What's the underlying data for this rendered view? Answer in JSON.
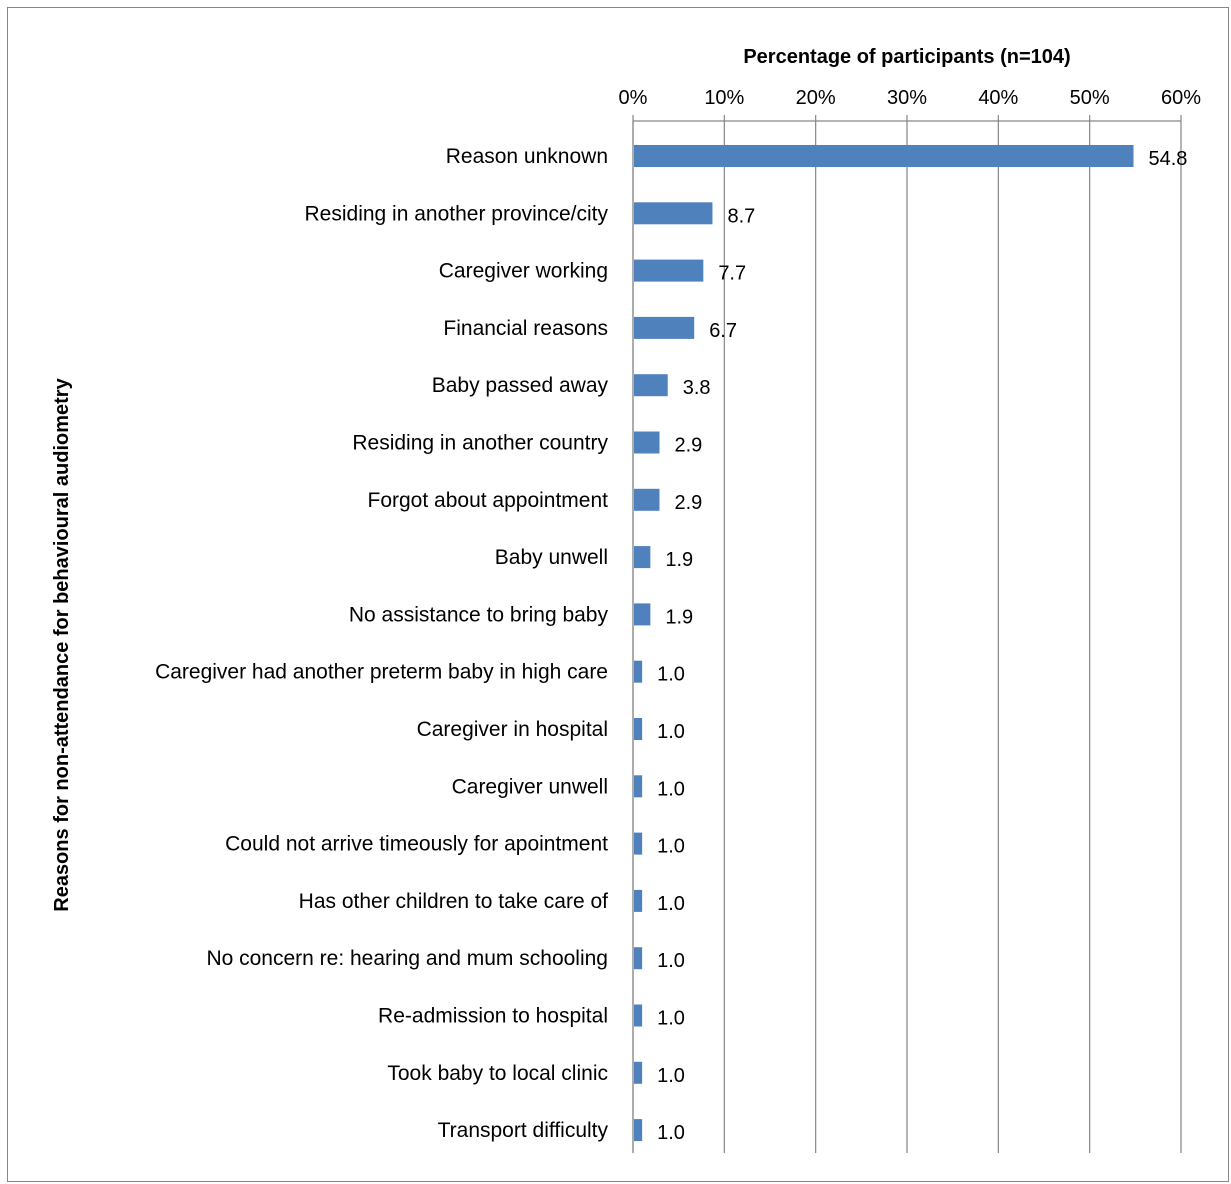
{
  "chart_data": {
    "type": "bar",
    "orientation": "horizontal",
    "title": "",
    "xlabel": "Percentage of participants (n=104)",
    "ylabel": "Reasons for non-attendance for behavioural audiometry",
    "xlim": [
      0,
      60
    ],
    "x_ticks": [
      "0%",
      "10%",
      "20%",
      "30%",
      "40%",
      "50%",
      "60%"
    ],
    "x_axis_position": "top",
    "grid": "vertical",
    "legend": "none",
    "bar_color": "#4f81bd",
    "categories": [
      "Reason unknown",
      "Residing in another province/city",
      "Caregiver working",
      "Financial reasons",
      "Baby passed away",
      "Residing in another country",
      "Forgot about appointment",
      "Baby unwell",
      "No assistance to bring baby",
      "Caregiver had another preterm baby in high care",
      "Caregiver in hospital",
      "Caregiver unwell",
      "Could not arrive timeously for apointment",
      "Has other children to take care of",
      "No concern re: hearing and mum schooling",
      "Re-admission to hospital",
      "Took baby to local clinic",
      "Transport difficulty"
    ],
    "values": [
      54.8,
      8.7,
      7.7,
      6.7,
      3.8,
      2.9,
      2.9,
      1.9,
      1.9,
      1.0,
      1.0,
      1.0,
      1.0,
      1.0,
      1.0,
      1.0,
      1.0,
      1.0
    ],
    "data_labels": [
      "54.8",
      "8.7",
      "7.7",
      "6.7",
      "3.8",
      "2.9",
      "2.9",
      "1.9",
      "1.9",
      "1.0",
      "1.0",
      "1.0",
      "1.0",
      "1.0",
      "1.0",
      "1.0",
      "1.0",
      "1.0"
    ]
  }
}
